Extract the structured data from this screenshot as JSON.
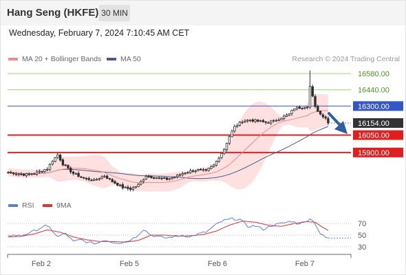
{
  "header": {
    "title": "Hang Seng (HKFE)",
    "timeframe": "30 MIN",
    "datetime": "Wednesday, February 7, 2024 7:10:45 AM CET"
  },
  "legend": {
    "ma20": "MA 20 + Bollinger Bands",
    "ma50": "MA 50",
    "credit": "Research © 2024 Trading Central"
  },
  "rsi_legend": {
    "rsi": "RSI",
    "ma9": "9MA"
  },
  "colors": {
    "candle": "#2e2e2e",
    "bollinger_fill": "#ffdada",
    "ma20": "#f08a86",
    "ma50": "#4a5a8c",
    "target_line": "#9bd27a",
    "target_text": "#4a9a1e",
    "pivot": "#3556c8",
    "support": "#e02020",
    "current": "#333333",
    "arrow": "#2f5f9e",
    "rsi": "#5b7fd6",
    "rsi_ma": "#e03030"
  },
  "chart_data": {
    "type": "candlestick",
    "x_labels": [
      "Feb 2",
      "Feb 5",
      "Feb 6",
      "Feb 7"
    ],
    "ylim": [
      15400,
      16620
    ],
    "current_price": "16154.00",
    "levels": [
      {
        "value": 16580,
        "label": "16580.00",
        "kind": "target"
      },
      {
        "value": 16440,
        "label": "16440.00",
        "kind": "target"
      },
      {
        "value": 16300,
        "label": "16300.00",
        "kind": "pivot"
      },
      {
        "value": 16050,
        "label": "16050.00",
        "kind": "support"
      },
      {
        "value": 15900,
        "label": "15900.00",
        "kind": "support"
      }
    ],
    "close_anchors": [
      [
        0,
        15730
      ],
      [
        6,
        15710
      ],
      [
        10,
        15720
      ],
      [
        15,
        15760
      ],
      [
        17,
        15830
      ],
      [
        19,
        15880
      ],
      [
        21,
        15800
      ],
      [
        25,
        15720
      ],
      [
        29,
        15680
      ],
      [
        33,
        15660
      ],
      [
        37,
        15700
      ],
      [
        40,
        15650
      ],
      [
        44,
        15600
      ],
      [
        47,
        15585
      ],
      [
        50,
        15620
      ],
      [
        53,
        15700
      ],
      [
        55,
        15690
      ],
      [
        58,
        15680
      ],
      [
        61,
        15670
      ],
      [
        64,
        15690
      ],
      [
        67,
        15720
      ],
      [
        70,
        15740
      ],
      [
        73,
        15750
      ],
      [
        76,
        15740
      ],
      [
        79,
        15790
      ],
      [
        81,
        15860
      ],
      [
        83,
        15930
      ],
      [
        85,
        16040
      ],
      [
        87,
        16120
      ],
      [
        90,
        16170
      ],
      [
        93,
        16180
      ],
      [
        96,
        16170
      ],
      [
        99,
        16160
      ],
      [
        102,
        16170
      ],
      [
        105,
        16200
      ],
      [
        108,
        16230
      ],
      [
        110,
        16280
      ],
      [
        113,
        16290
      ],
      [
        115,
        16300
      ],
      [
        116,
        16470
      ],
      [
        118,
        16290
      ],
      [
        120,
        16230
      ],
      [
        122,
        16200
      ],
      [
        123,
        16154
      ]
    ],
    "rsi": {
      "levels": [
        70,
        50,
        30
      ],
      "ylim": [
        15,
        85
      ],
      "rsi_anchors": [
        [
          0,
          50
        ],
        [
          5,
          49
        ],
        [
          10,
          57
        ],
        [
          14,
          66
        ],
        [
          16,
          62
        ],
        [
          19,
          47
        ],
        [
          22,
          53
        ],
        [
          25,
          39
        ],
        [
          28,
          42
        ],
        [
          31,
          37
        ],
        [
          34,
          36
        ],
        [
          37,
          42
        ],
        [
          40,
          38
        ],
        [
          43,
          37
        ],
        [
          46,
          40
        ],
        [
          49,
          47
        ],
        [
          52,
          60
        ],
        [
          55,
          50
        ],
        [
          58,
          47
        ],
        [
          61,
          45
        ],
        [
          64,
          48
        ],
        [
          67,
          50
        ],
        [
          70,
          47
        ],
        [
          73,
          52
        ],
        [
          76,
          55
        ],
        [
          79,
          65
        ],
        [
          81,
          71
        ],
        [
          83,
          75
        ],
        [
          86,
          78
        ],
        [
          89,
          77
        ],
        [
          92,
          65
        ],
        [
          95,
          66
        ],
        [
          98,
          60
        ],
        [
          101,
          66
        ],
        [
          104,
          69
        ],
        [
          107,
          72
        ],
        [
          109,
          74
        ],
        [
          111,
          70
        ],
        [
          114,
          72
        ],
        [
          116,
          79
        ],
        [
          118,
          70
        ],
        [
          120,
          52
        ],
        [
          122,
          46
        ],
        [
          123,
          45
        ]
      ],
      "ma_anchors": [
        [
          0,
          47
        ],
        [
          5,
          48
        ],
        [
          10,
          52
        ],
        [
          15,
          59
        ],
        [
          20,
          55
        ],
        [
          25,
          47
        ],
        [
          30,
          42
        ],
        [
          35,
          39
        ],
        [
          40,
          39
        ],
        [
          45,
          38
        ],
        [
          50,
          41
        ],
        [
          55,
          50
        ],
        [
          60,
          50
        ],
        [
          65,
          48
        ],
        [
          70,
          49
        ],
        [
          75,
          51
        ],
        [
          80,
          57
        ],
        [
          85,
          67
        ],
        [
          90,
          74
        ],
        [
          95,
          72
        ],
        [
          100,
          67
        ],
        [
          105,
          65
        ],
        [
          110,
          70
        ],
        [
          115,
          73
        ],
        [
          118,
          72
        ],
        [
          121,
          63
        ],
        [
          123,
          58
        ]
      ]
    }
  }
}
